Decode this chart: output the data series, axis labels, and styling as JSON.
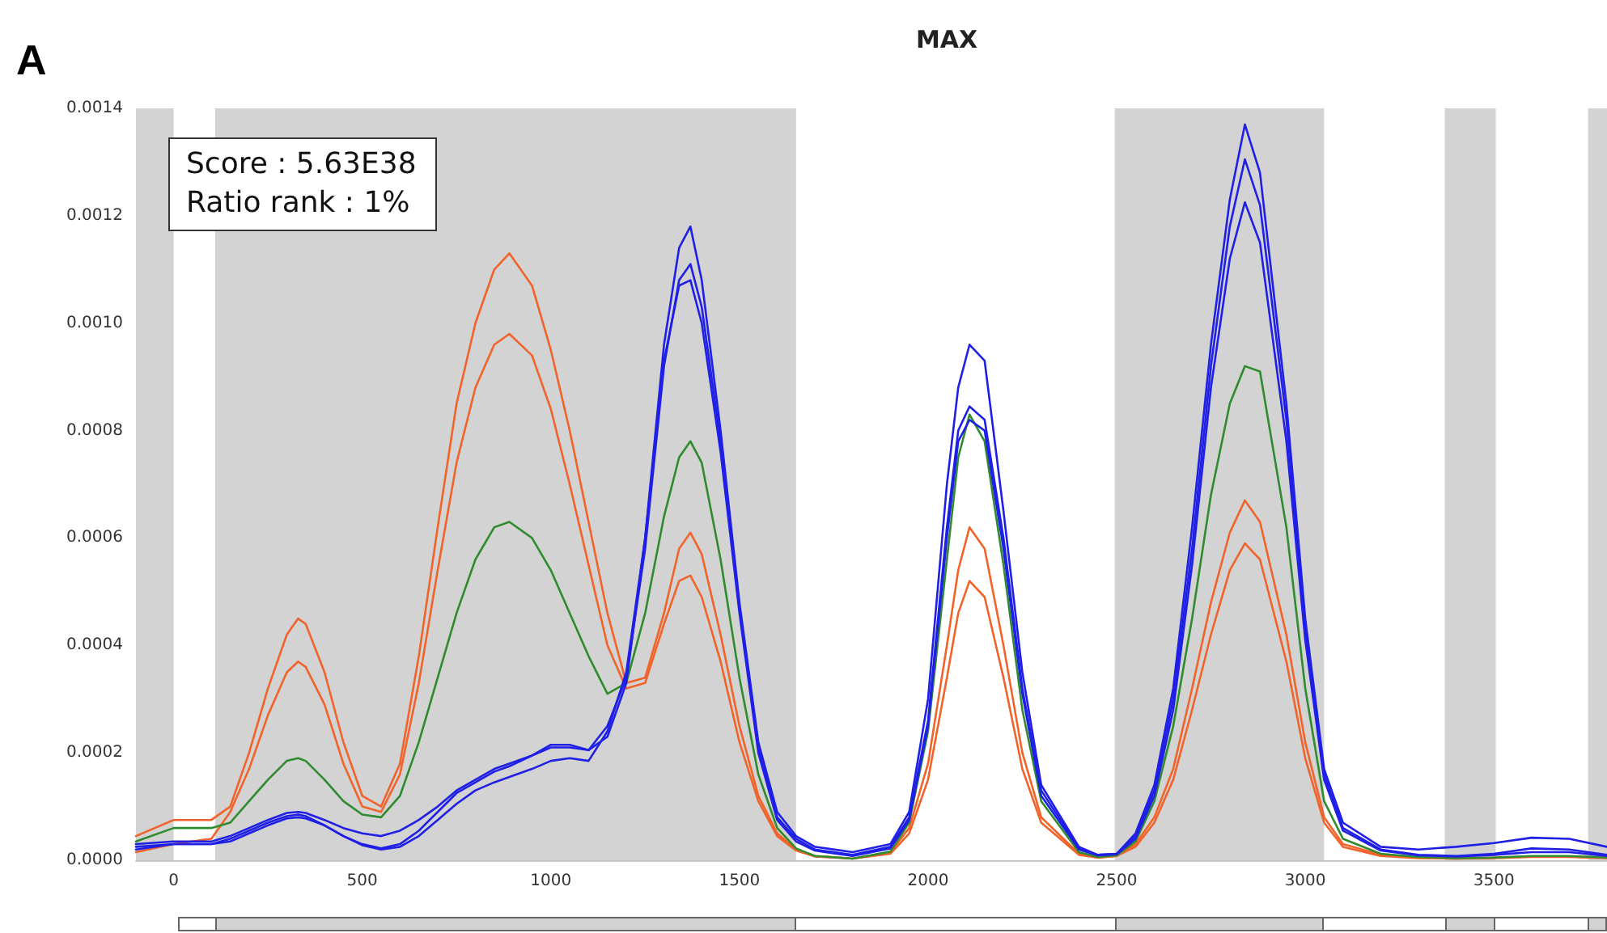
{
  "chart_data": {
    "type": "line",
    "title": "MAX",
    "annotations": [
      "A",
      "Score : 5.63E38",
      "Ratio rank : 1%"
    ],
    "x": [
      -100,
      0,
      100,
      150,
      200,
      250,
      300,
      330,
      350,
      400,
      450,
      500,
      550,
      600,
      650,
      700,
      750,
      800,
      850,
      890,
      950,
      1000,
      1050,
      1100,
      1150,
      1200,
      1250,
      1300,
      1340,
      1370,
      1400,
      1450,
      1500,
      1550,
      1600,
      1650,
      1700,
      1800,
      1900,
      1950,
      2000,
      2050,
      2080,
      2110,
      2150,
      2200,
      2250,
      2300,
      2400,
      2450,
      2500,
      2550,
      2600,
      2650,
      2700,
      2750,
      2800,
      2840,
      2880,
      2950,
      3000,
      3050,
      3100,
      3200,
      3300,
      3400,
      3500,
      3600,
      3700,
      3800
    ],
    "series": [
      {
        "color": "#f2632a",
        "values": [
          4.5e-05,
          7.5e-05,
          7.5e-05,
          0.0001,
          0.0002,
          0.00032,
          0.00042,
          0.00045,
          0.00044,
          0.00035,
          0.00022,
          0.00012,
          0.0001,
          0.00018,
          0.00038,
          0.00062,
          0.00085,
          0.001,
          0.0011,
          0.00113,
          0.00107,
          0.00095,
          0.0008,
          0.00063,
          0.00046,
          0.00033,
          0.00034,
          0.00046,
          0.00058,
          0.00061,
          0.00057,
          0.00042,
          0.00025,
          0.00012,
          5e-05,
          2e-05,
          8e-06,
          3e-06,
          1.5e-05,
          6e-05,
          0.00018,
          0.0004,
          0.00054,
          0.00062,
          0.00058,
          0.0004,
          0.0002,
          8e-05,
          1.2e-05,
          5e-06,
          8e-06,
          3e-05,
          8e-05,
          0.00017,
          0.00032,
          0.00048,
          0.00061,
          0.00067,
          0.00063,
          0.00042,
          0.00022,
          8e-05,
          3e-05,
          1e-05,
          5e-06,
          3e-06,
          5e-06,
          7e-06,
          7e-06,
          5e-06
        ]
      },
      {
        "color": "#f2632a",
        "values": [
          1.5e-05,
          3e-05,
          4e-05,
          9e-05,
          0.00017,
          0.00027,
          0.00035,
          0.00037,
          0.00036,
          0.00029,
          0.00018,
          0.0001,
          9e-05,
          0.00016,
          0.00033,
          0.00054,
          0.00074,
          0.00088,
          0.00096,
          0.00098,
          0.00094,
          0.00084,
          0.0007,
          0.00055,
          0.0004,
          0.00032,
          0.00033,
          0.00044,
          0.00052,
          0.00053,
          0.00049,
          0.00037,
          0.00022,
          0.00011,
          4.5e-05,
          1.8e-05,
          7e-06,
          3e-06,
          1.2e-05,
          5e-05,
          0.00015,
          0.00034,
          0.00046,
          0.00052,
          0.00049,
          0.00034,
          0.00017,
          7e-05,
          1e-05,
          5e-06,
          8e-06,
          2.5e-05,
          7e-05,
          0.00015,
          0.00028,
          0.00042,
          0.00054,
          0.00059,
          0.00056,
          0.00037,
          0.00019,
          7e-05,
          2.5e-05,
          8e-06,
          4e-06,
          3e-06,
          4e-06,
          6e-06,
          6e-06,
          4e-06
        ]
      },
      {
        "color": "#2e8b2e",
        "values": [
          3.5e-05,
          6e-05,
          6e-05,
          7e-05,
          0.00011,
          0.00015,
          0.000185,
          0.00019,
          0.000185,
          0.00015,
          0.00011,
          8.5e-05,
          8e-05,
          0.00012,
          0.00022,
          0.00034,
          0.00046,
          0.00056,
          0.00062,
          0.00063,
          0.0006,
          0.00054,
          0.00046,
          0.00038,
          0.00031,
          0.00033,
          0.00046,
          0.00064,
          0.00075,
          0.00078,
          0.00074,
          0.00056,
          0.00034,
          0.00016,
          6e-05,
          2.2e-05,
          8e-06,
          3e-06,
          1.6e-05,
          7e-05,
          0.00024,
          0.00056,
          0.00075,
          0.00083,
          0.00078,
          0.00055,
          0.00028,
          0.00011,
          1.5e-05,
          6e-06,
          9e-06,
          3.5e-05,
          0.00011,
          0.00025,
          0.00045,
          0.00068,
          0.00085,
          0.00092,
          0.00091,
          0.00062,
          0.00032,
          0.00011,
          4e-05,
          1.2e-05,
          6e-06,
          4e-06,
          5e-06,
          8e-06,
          8e-06,
          5e-06
        ]
      },
      {
        "color": "#1f1fe6",
        "values": [
          3e-05,
          3.5e-05,
          3.5e-05,
          4.5e-05,
          6e-05,
          7.5e-05,
          8.8e-05,
          9e-05,
          8.8e-05,
          7.5e-05,
          6e-05,
          5e-05,
          4.5e-05,
          5.5e-05,
          7.5e-05,
          0.0001,
          0.00013,
          0.00015,
          0.00017,
          0.00018,
          0.000195,
          0.00021,
          0.00021,
          0.000205,
          0.00023,
          0.00033,
          0.0006,
          0.00096,
          0.00114,
          0.00118,
          0.00108,
          0.0008,
          0.00048,
          0.00022,
          9e-05,
          4.5e-05,
          2.5e-05,
          1.5e-05,
          3e-05,
          9e-05,
          0.0003,
          0.0007,
          0.00088,
          0.00096,
          0.00093,
          0.00065,
          0.00035,
          0.00014,
          2.5e-05,
          1e-05,
          1.2e-05,
          5e-05,
          0.00014,
          0.00032,
          0.00062,
          0.00096,
          0.00123,
          0.00137,
          0.00128,
          0.00085,
          0.00045,
          0.00017,
          7e-05,
          2.5e-05,
          2e-05,
          2.5e-05,
          3.2e-05,
          4.2e-05,
          4e-05,
          2.5e-05
        ]
      },
      {
        "color": "#1f1fe6",
        "values": [
          2e-05,
          3e-05,
          3e-05,
          4e-05,
          5.5e-05,
          7e-05,
          8.2e-05,
          8.5e-05,
          8.2e-05,
          6.5e-05,
          4.5e-05,
          3e-05,
          2.2e-05,
          3e-05,
          5.5e-05,
          9e-05,
          0.000125,
          0.000145,
          0.000165,
          0.000175,
          0.000195,
          0.000215,
          0.000215,
          0.000205,
          0.00025,
          0.00034,
          0.00058,
          0.00092,
          0.00108,
          0.00111,
          0.00103,
          0.00078,
          0.00047,
          0.00021,
          8e-05,
          4e-05,
          2e-05,
          1e-05,
          2.5e-05,
          8e-05,
          0.00026,
          0.00062,
          0.0008,
          0.000845,
          0.00082,
          0.0006,
          0.00032,
          0.00013,
          2.2e-05,
          1e-05,
          1.2e-05,
          4.5e-05,
          0.00013,
          0.0003,
          0.00058,
          0.00092,
          0.00118,
          0.001305,
          0.00122,
          0.00082,
          0.00043,
          0.00016,
          6e-05,
          2e-05,
          1e-05,
          8e-06,
          1.2e-05,
          2.2e-05,
          2e-05,
          1e-05
        ]
      },
      {
        "color": "#1f1fe6",
        "values": [
          2.5e-05,
          3e-05,
          3e-05,
          3.5e-05,
          5e-05,
          6.5e-05,
          7.8e-05,
          8e-05,
          7.8e-05,
          6.5e-05,
          4.5e-05,
          2.8e-05,
          2e-05,
          2.5e-05,
          4.5e-05,
          7.5e-05,
          0.000105,
          0.00013,
          0.000145,
          0.000155,
          0.00017,
          0.000185,
          0.00019,
          0.000185,
          0.00024,
          0.00035,
          0.0006,
          0.00093,
          0.00107,
          0.00108,
          0.001,
          0.00076,
          0.00046,
          0.0002,
          7.5e-05,
          3.5e-05,
          1.8e-05,
          8e-06,
          2.2e-05,
          7.5e-05,
          0.00025,
          0.0006,
          0.00078,
          0.00082,
          0.0008,
          0.00058,
          0.00031,
          0.00012,
          2e-05,
          9e-06,
          1.1e-05,
          4e-05,
          0.00012,
          0.00028,
          0.00055,
          0.00088,
          0.00112,
          0.001225,
          0.00115,
          0.00078,
          0.00041,
          0.00015,
          5.5e-05,
          1.8e-05,
          9e-06,
          7e-06,
          1e-05,
          1.5e-05,
          1.5e-05,
          8e-06
        ]
      }
    ],
    "xlim": [
      -100,
      3800
    ],
    "xticks": [
      0,
      500,
      1000,
      1500,
      2000,
      2500,
      3000,
      3500
    ],
    "ylim": [
      0,
      0.0014
    ],
    "yticks": [
      {
        "value": 0,
        "label": "0.0000"
      },
      {
        "value": 0.0002,
        "label": "0.0002"
      },
      {
        "value": 0.0004,
        "label": "0.0004"
      },
      {
        "value": 0.0006,
        "label": "0.0006"
      },
      {
        "value": 0.0008,
        "label": "0.0008"
      },
      {
        "value": 0.001,
        "label": "0.0010"
      },
      {
        "value": 0.0012,
        "label": "0.0012"
      },
      {
        "value": 0.0014,
        "label": "0.0014"
      }
    ],
    "bands": [
      {
        "axis": "x",
        "from": -100,
        "to": 0,
        "color": "#d3d3d3"
      },
      {
        "axis": "x",
        "from": 110,
        "to": 1650,
        "color": "#d3d3d3"
      },
      {
        "axis": "x",
        "from": 2495,
        "to": 3050,
        "color": "#d3d3d3"
      },
      {
        "axis": "x",
        "from": 3370,
        "to": 3505,
        "color": "#d3d3d3"
      },
      {
        "axis": "x",
        "from": 3750,
        "to": 3800,
        "color": "#d3d3d3"
      }
    ],
    "grid": false,
    "marker": "none",
    "line_style": "solid"
  }
}
